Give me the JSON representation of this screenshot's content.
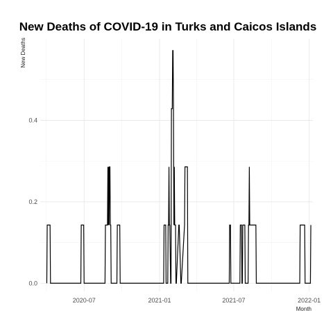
{
  "chart_data": {
    "type": "line",
    "title": "New Deaths of COVID-19 in Turks and Caicos Islands",
    "xlabel": "Month",
    "ylabel": "New Deaths",
    "x_tick_labels": [
      "2020-07",
      "2021-01",
      "2021-07",
      "2022-01"
    ],
    "x_ticks": [
      "2020-07-01",
      "2021-01-01",
      "2021-07-01",
      "2022-01-01"
    ],
    "y_ticks": [
      0.0,
      0.2,
      0.4
    ],
    "y_tick_labels": [
      "0.0",
      "0.2",
      "0.4"
    ],
    "xlim": [
      "2020-03-16",
      "2022-01-10"
    ],
    "ylim": [
      -0.02,
      0.6
    ],
    "grid": true,
    "legend": "none",
    "line_color": "#000000",
    "series": [
      {
        "x": [
          "2020-04-01",
          "2020-04-02",
          "2020-04-03",
          "2020-04-09",
          "2020-04-10",
          "2020-06-23",
          "2020-06-24",
          "2020-06-30",
          "2020-07-01",
          "2020-08-21",
          "2020-08-22",
          "2020-08-27",
          "2020-08-28",
          "2020-08-29",
          "2020-08-30",
          "2020-08-31",
          "2020-09-01",
          "2020-09-02",
          "2020-09-03",
          "2020-09-04",
          "2020-09-05",
          "2020-09-19",
          "2020-09-20",
          "2020-09-26",
          "2020-09-27",
          "2021-01-11",
          "2021-01-12",
          "2021-01-16",
          "2021-01-17",
          "2021-01-21",
          "2021-01-22",
          "2021-01-23",
          "2021-01-24",
          "2021-01-25",
          "2021-01-26",
          "2021-01-28",
          "2021-01-29",
          "2021-01-30",
          "2021-02-01",
          "2021-02-02",
          "2021-02-03",
          "2021-02-04",
          "2021-02-05",
          "2021-02-06",
          "2021-02-07",
          "2021-02-09",
          "2021-02-10",
          "2021-02-11",
          "2021-02-17",
          "2021-02-18",
          "2021-02-22",
          "2021-02-23",
          "2021-03-03",
          "2021-03-04",
          "2021-03-10",
          "2021-03-11",
          "2021-06-20",
          "2021-06-21",
          "2021-06-23",
          "2021-06-24",
          "2021-07-16",
          "2021-07-17",
          "2021-07-20",
          "2021-07-21",
          "2021-07-22",
          "2021-07-23",
          "2021-07-28",
          "2021-07-29",
          "2021-08-05",
          "2021-08-06",
          "2021-08-07",
          "2021-08-08",
          "2021-08-09",
          "2021-08-10",
          "2021-08-11",
          "2021-08-24",
          "2021-08-25",
          "2021-12-09",
          "2021-12-10",
          "2021-12-21",
          "2021-12-22",
          "2022-01-04",
          "2022-01-05"
        ],
        "y": [
          0,
          0.1429,
          0.1429,
          0.1429,
          0,
          0,
          0.1429,
          0.1429,
          0,
          0,
          0.1429,
          0.1429,
          0.2857,
          0.1429,
          0.2857,
          0.1429,
          0.2857,
          0.2857,
          0.1429,
          0.1429,
          0,
          0,
          0.1429,
          0.1429,
          0,
          0,
          0.1429,
          0.1429,
          0,
          0,
          0.1429,
          0.1429,
          0.2857,
          0.1429,
          0.1429,
          0,
          0,
          0.4286,
          0.4286,
          0.5714,
          0.5714,
          0.4286,
          0.1429,
          0.2857,
          0.1429,
          0.1429,
          0,
          0,
          0.1429,
          0.1429,
          0,
          0,
          0.1429,
          0.2857,
          0.2857,
          0,
          0,
          0.1429,
          0.1429,
          0,
          0,
          0.1429,
          0.1429,
          0,
          0,
          0.1429,
          0.1429,
          0,
          0,
          0.1429,
          0.1429,
          0.2857,
          0.1429,
          0.1429,
          0.1429,
          0.1429,
          0,
          0,
          0.1429,
          0.1429,
          0,
          0,
          0.1429
        ]
      }
    ]
  }
}
